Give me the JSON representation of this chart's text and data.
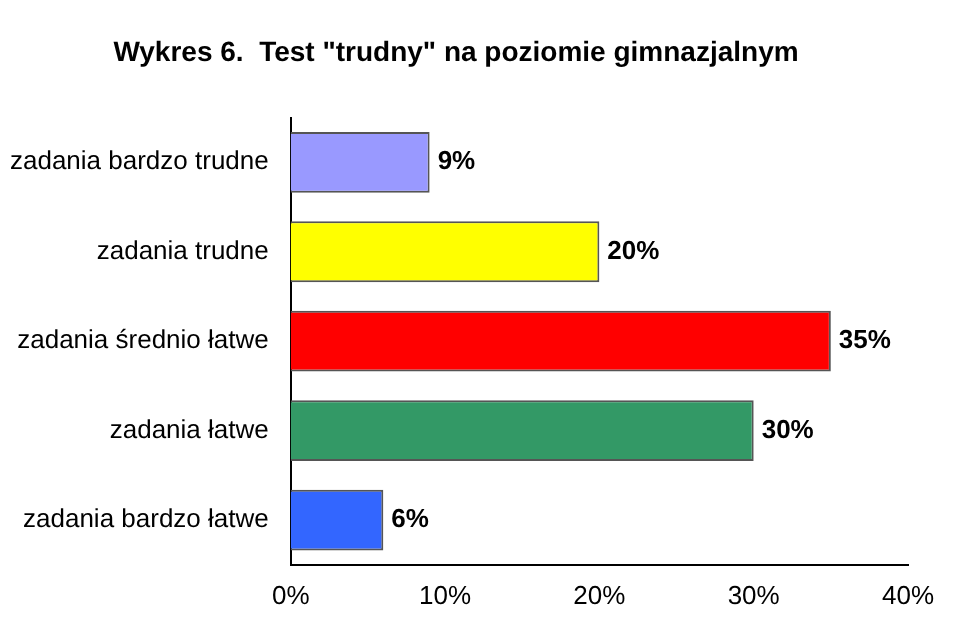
{
  "chart_data": {
    "type": "bar",
    "orientation": "horizontal",
    "title": "Wykres 6.  Test \"trudny\" na poziomie gimnazjalnym",
    "categories": [
      "zadania bardzo trudne",
      "zadania trudne",
      "zadania średnio łatwe",
      "zadania łatwe",
      "zadania bardzo łatwe"
    ],
    "values": [
      9,
      20,
      35,
      30,
      6
    ],
    "colors": [
      "#9999ff",
      "#ffff00",
      "#ff0000",
      "#339966",
      "#3366ff"
    ],
    "value_labels": [
      "9%",
      "20%",
      "35%",
      "30%",
      "6%"
    ],
    "xlim": [
      0,
      40
    ],
    "xticks": [
      {
        "value": 0,
        "label": "0%"
      },
      {
        "value": 10,
        "label": "10%"
      },
      {
        "value": 20,
        "label": "20%"
      },
      {
        "value": 30,
        "label": "30%"
      },
      {
        "value": 40,
        "label": "40%"
      }
    ],
    "grid": false,
    "legend": false
  }
}
